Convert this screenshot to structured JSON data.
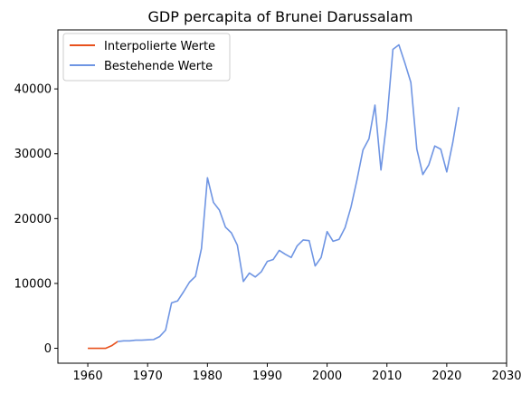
{
  "chart_data": {
    "type": "line",
    "title": "GDP percapita of Brunei Darussalam",
    "xlabel": "",
    "ylabel": "",
    "xlim": [
      1955,
      2030
    ],
    "ylim": [
      -2300,
      49100
    ],
    "x_ticks": [
      1960,
      1970,
      1980,
      1990,
      2000,
      2010,
      2020,
      2030
    ],
    "y_ticks": [
      0,
      10000,
      20000,
      30000,
      40000
    ],
    "x_tick_labels": [
      "1960",
      "1970",
      "1980",
      "1990",
      "2000",
      "2010",
      "2020",
      "2030"
    ],
    "y_tick_labels": [
      "0",
      "10000",
      "20000",
      "30000",
      "40000"
    ],
    "grid": false,
    "legend_position": "upper-left",
    "series": [
      {
        "name": "Interpolierte Werte",
        "color": "#e8511d",
        "x": [
          1960,
          1961,
          1962,
          1963,
          1964,
          1965
        ],
        "y": [
          0,
          0,
          0,
          0,
          400,
          1050
        ]
      },
      {
        "name": "Bestehende Werte",
        "color": "#6f95e3",
        "x": [
          1965,
          1966,
          1967,
          1968,
          1969,
          1970,
          1971,
          1972,
          1973,
          1974,
          1975,
          1976,
          1977,
          1978,
          1979,
          1980,
          1981,
          1982,
          1983,
          1984,
          1985,
          1986,
          1987,
          1988,
          1989,
          1990,
          1991,
          1992,
          1993,
          1994,
          1995,
          1996,
          1997,
          1998,
          1999,
          2000,
          2001,
          2002,
          2003,
          2004,
          2005,
          2006,
          2007,
          2008,
          2009,
          2010,
          2011,
          2012,
          2013,
          2014,
          2015,
          2016,
          2017,
          2018,
          2019,
          2020,
          2021,
          2022
        ],
        "y": [
          1050,
          1150,
          1150,
          1250,
          1250,
          1300,
          1350,
          1800,
          2800,
          7000,
          7300,
          8700,
          10200,
          11100,
          15400,
          26300,
          22500,
          21300,
          18700,
          17800,
          15900,
          10300,
          11600,
          11000,
          11800,
          13400,
          13700,
          15100,
          14500,
          14000,
          15800,
          16700,
          16600,
          12700,
          14000,
          18000,
          16500,
          16800,
          18600,
          21800,
          26000,
          30600,
          32300,
          37500,
          27500,
          35200,
          46100,
          46800,
          44000,
          41000,
          30700,
          26800,
          28300,
          31200,
          30700,
          27200,
          31700,
          37200
        ]
      }
    ]
  }
}
